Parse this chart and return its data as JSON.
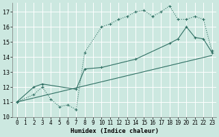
{
  "xlabel": "Humidex (Indice chaleur)",
  "background_color": "#cce8e0",
  "grid_color": "#ffffff",
  "line_color": "#2e6e62",
  "xlim": [
    -0.5,
    23.5
  ],
  "ylim": [
    10,
    17.6
  ],
  "yticks": [
    10,
    11,
    12,
    13,
    14,
    15,
    16,
    17
  ],
  "xticks": [
    0,
    1,
    2,
    3,
    4,
    5,
    6,
    7,
    8,
    9,
    10,
    11,
    12,
    13,
    14,
    15,
    16,
    17,
    18,
    19,
    20,
    21,
    22,
    23
  ],
  "series1_x": [
    0,
    2,
    3,
    4,
    5,
    6,
    7,
    8,
    10,
    11,
    12,
    13,
    14,
    15,
    16,
    17,
    18,
    19,
    20,
    21,
    22,
    23
  ],
  "series1_y": [
    11,
    11.5,
    12,
    11.2,
    10.7,
    10.8,
    10.5,
    14.3,
    16.0,
    16.2,
    16.5,
    16.7,
    17.0,
    17.1,
    16.7,
    17.0,
    17.4,
    16.5,
    16.5,
    16.7,
    16.5,
    14.4
  ],
  "series2_x": [
    0,
    2,
    3,
    7,
    8,
    10,
    14,
    18,
    19,
    20,
    21,
    22,
    23
  ],
  "series2_y": [
    11,
    12,
    12.2,
    11.85,
    13.2,
    13.3,
    13.85,
    14.9,
    15.2,
    16.0,
    15.3,
    15.2,
    14.3
  ],
  "series3_x": [
    0,
    23
  ],
  "series3_y": [
    11,
    14.1
  ]
}
